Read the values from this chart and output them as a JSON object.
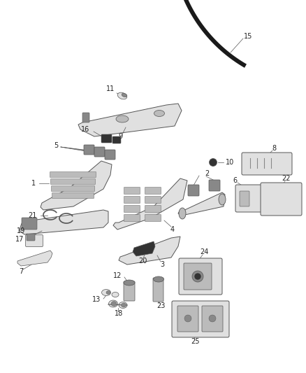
{
  "bg_color": "#ffffff",
  "fig_width": 4.38,
  "fig_height": 5.33,
  "dpi": 100,
  "line_color": "#555555",
  "dark_color": "#333333",
  "gray_light": "#e0e0e0",
  "gray_mid": "#bbbbbb",
  "gray_dark": "#888888",
  "very_dark": "#1a1a1a",
  "label_color": "#222222",
  "fs": 7.0
}
